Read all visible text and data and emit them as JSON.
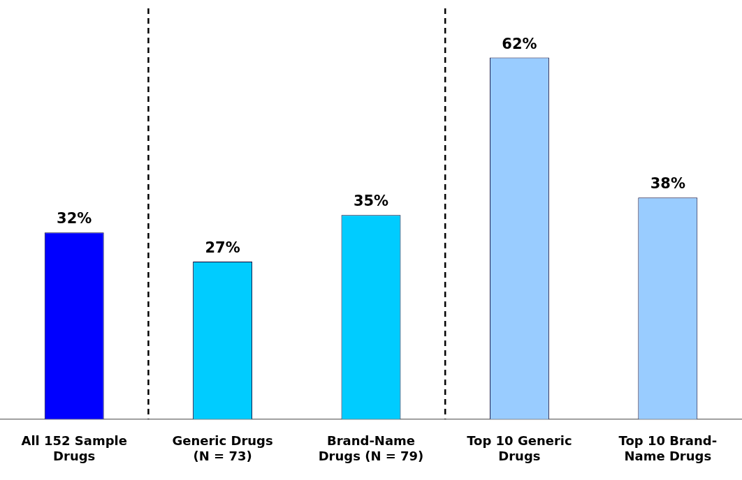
{
  "chart_data": {
    "type": "bar",
    "categories": [
      "All 152 Sample Drugs",
      "Generic Drugs (N = 73)",
      "Brand-Name Drugs (N = 79)",
      "Top 10 Generic Drugs",
      "Top 10 Brand-Name Drugs"
    ],
    "values": [
      32,
      27,
      35,
      62,
      38
    ],
    "colors": [
      "#0000ff",
      "#00ccff",
      "#00ccff",
      "#99ccff",
      "#99ccff"
    ],
    "value_labels": [
      "32%",
      "27%",
      "35%",
      "62%",
      "38%"
    ],
    "grid": false,
    "legend": false
  }
}
